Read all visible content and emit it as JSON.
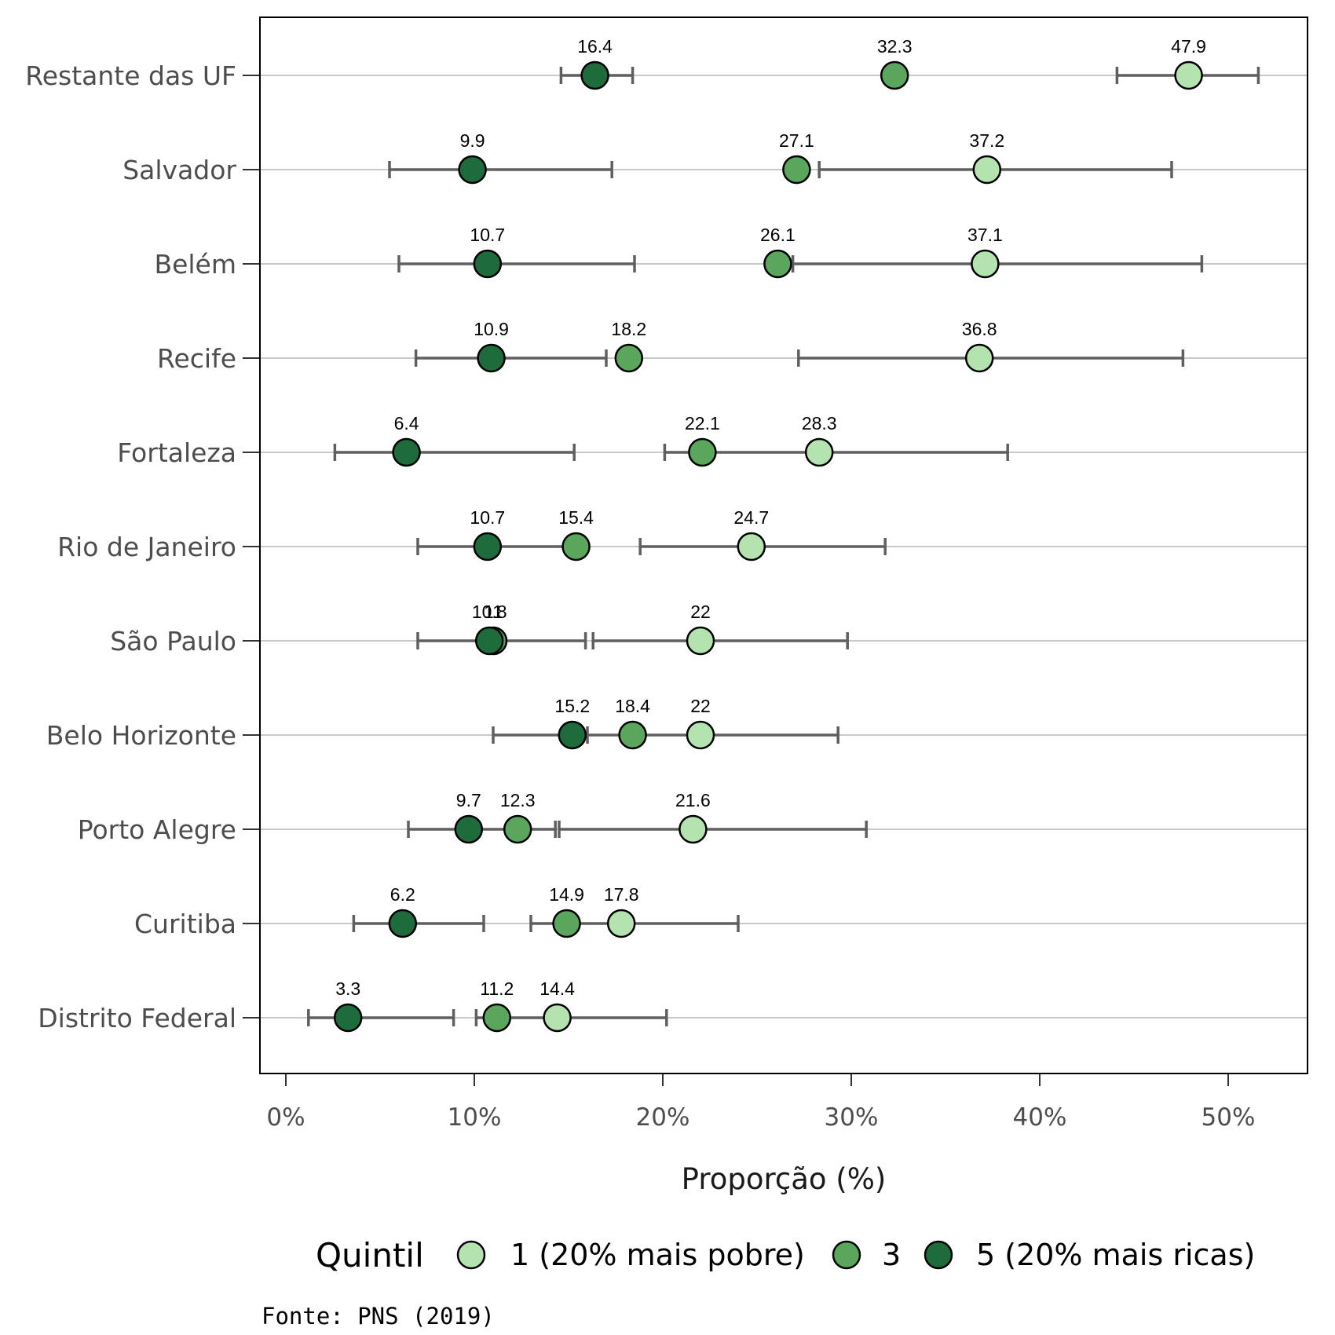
{
  "chart_data": {
    "type": "scatter",
    "xlabel": "Proporção (%)",
    "xlim": [
      -1.5,
      54
    ],
    "xticks": [
      0,
      10,
      20,
      30,
      40,
      50
    ],
    "xtick_labels": [
      "0%",
      "10%",
      "20%",
      "30%",
      "40%",
      "50%"
    ],
    "grid": "horizontal",
    "categories": [
      "Restante das UF",
      "Salvador",
      "Belém",
      "Recife",
      "Fortaleza",
      "Rio de Janeiro",
      "São Paulo",
      "Belo Horizonte",
      "Porto Alegre",
      "Curitiba",
      "Distrito Federal"
    ],
    "series": [
      {
        "name": "1 (20% mais pobre)",
        "color": "#b5e3b0",
        "values": [
          47.9,
          37.2,
          37.1,
          36.8,
          28.3,
          24.7,
          22,
          22,
          21.6,
          17.8,
          14.4
        ],
        "value_labels": [
          "47.9",
          "37.2",
          "37.1",
          "36.8",
          "28.3",
          "24.7",
          "22",
          "22",
          "21.6",
          "17.8",
          "14.4"
        ],
        "ci_low": [
          44.1,
          28.3,
          26.9,
          27.2,
          20.1,
          18.8,
          16.3,
          14.9,
          14.5,
          13.0,
          10.1
        ],
        "ci_high": [
          51.6,
          47.0,
          48.6,
          47.6,
          38.3,
          31.8,
          29.8,
          29.3,
          30.8,
          24.0,
          20.2
        ]
      },
      {
        "name": "3",
        "color": "#5aa65c",
        "values": [
          32.3,
          27.1,
          26.1,
          18.2,
          22.1,
          15.4,
          11,
          18.4,
          12.3,
          14.9,
          11.2
        ],
        "value_labels": [
          "32.3",
          "27.1",
          "26.1",
          "18.2",
          "22.1",
          "15.4",
          "11",
          "18.4",
          "12.3",
          "14.9",
          "11.2"
        ],
        "ci_low": [
          null,
          null,
          null,
          null,
          null,
          null,
          null,
          null,
          null,
          null,
          null
        ],
        "ci_high": [
          null,
          null,
          null,
          null,
          null,
          null,
          null,
          null,
          null,
          null,
          null
        ]
      },
      {
        "name": "5 (20% mais ricas)",
        "color": "#1e6b3c",
        "values": [
          16.4,
          9.9,
          10.7,
          10.9,
          6.4,
          10.7,
          10.8,
          15.2,
          9.7,
          6.2,
          3.3
        ],
        "value_labels": [
          "16.4",
          "9.9",
          "10.7",
          "10.9",
          "6.4",
          "10.7",
          "10.8",
          "15.2",
          "9.7",
          "6.2",
          "3.3"
        ],
        "ci_low": [
          14.6,
          5.5,
          6.0,
          6.9,
          2.6,
          7.0,
          7.0,
          11.0,
          6.5,
          3.6,
          1.2
        ],
        "ci_high": [
          18.4,
          17.3,
          18.5,
          17.0,
          15.3,
          15.4,
          15.9,
          16.0,
          14.3,
          10.5,
          8.9
        ]
      }
    ],
    "legend": {
      "title": "Quintil",
      "position": "bottom"
    }
  },
  "source_note": "Fonte: PNS (2019)"
}
